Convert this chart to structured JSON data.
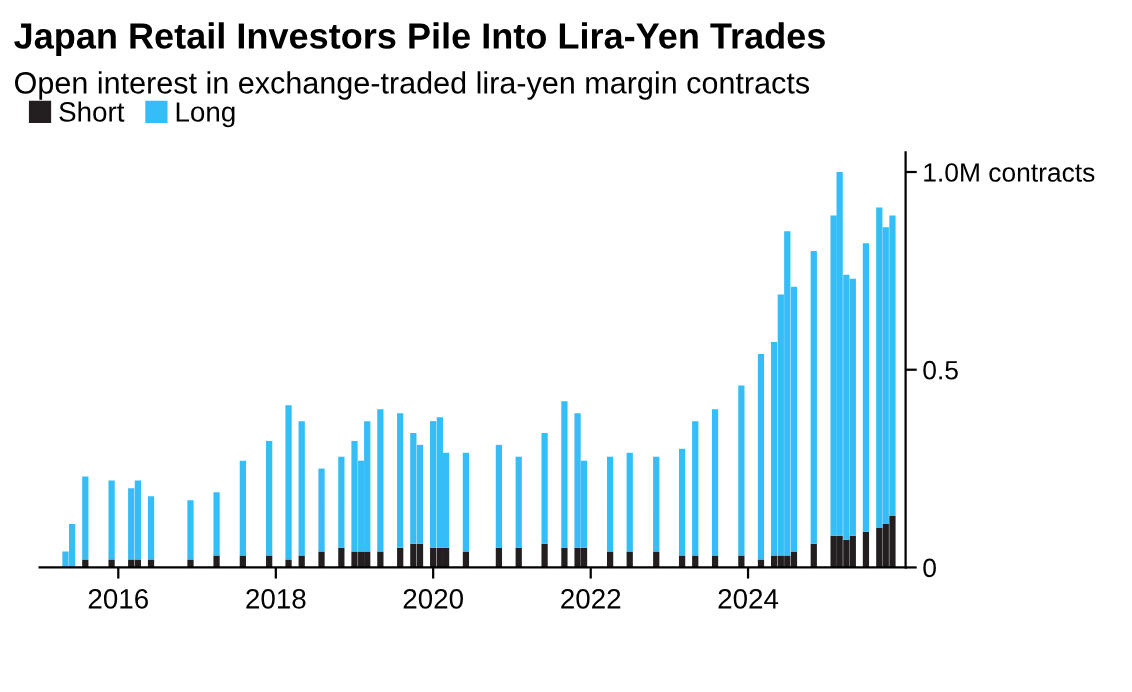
{
  "chart_data": {
    "type": "bar",
    "stacked": true,
    "title": "Japan Retail Investors Pile Into Lira-Yen Trades",
    "subtitle": "Open interest in exchange-traded lira-yen margin contracts",
    "x": [
      "2015-05",
      "2015-06",
      "2015-08",
      "2015-12",
      "2016-03",
      "2016-04",
      "2016-06",
      "2016-12",
      "2017-04",
      "2017-08",
      "2017-12",
      "2018-03",
      "2018-05",
      "2018-08",
      "2018-11",
      "2019-01",
      "2019-02",
      "2019-03",
      "2019-05",
      "2019-08",
      "2019-10",
      "2019-11",
      "2020-01",
      "2020-02",
      "2020-03",
      "2020-06",
      "2020-11",
      "2021-02",
      "2021-06",
      "2021-09",
      "2021-11",
      "2021-12",
      "2022-04",
      "2022-07",
      "2022-11",
      "2023-03",
      "2023-05",
      "2023-08",
      "2023-12",
      "2024-03",
      "2024-05",
      "2024-06",
      "2024-07",
      "2024-08",
      "2024-11",
      "2025-02",
      "2025-03",
      "2025-04",
      "2025-05",
      "2025-07",
      "2025-09",
      "2025-10",
      "2025-11"
    ],
    "series": [
      {
        "name": "Short",
        "color": "#231f20",
        "values": [
          0,
          0,
          0.02,
          0.02,
          0.02,
          0.02,
          0.02,
          0.02,
          0.03,
          0.03,
          0.03,
          0.02,
          0.03,
          0.04,
          0.05,
          0.04,
          0.04,
          0.04,
          0.04,
          0.05,
          0.06,
          0.06,
          0.05,
          0.05,
          0.05,
          0.04,
          0.05,
          0.05,
          0.06,
          0.05,
          0.05,
          0.05,
          0.04,
          0.04,
          0.04,
          0.03,
          0.03,
          0.03,
          0.03,
          0.02,
          0.03,
          0.03,
          0.03,
          0.04,
          0.06,
          0.08,
          0.08,
          0.07,
          0.08,
          0.09,
          0.1,
          0.11,
          0.13
        ]
      },
      {
        "name": "Long",
        "color": "#34bdf6",
        "values": [
          0.04,
          0.11,
          0.21,
          0.2,
          0.18,
          0.2,
          0.16,
          0.15,
          0.16,
          0.24,
          0.29,
          0.39,
          0.34,
          0.21,
          0.23,
          0.28,
          0.23,
          0.33,
          0.36,
          0.34,
          0.28,
          0.25,
          0.32,
          0.33,
          0.24,
          0.25,
          0.26,
          0.23,
          0.28,
          0.37,
          0.34,
          0.22,
          0.24,
          0.25,
          0.24,
          0.27,
          0.34,
          0.37,
          0.43,
          0.52,
          0.54,
          0.66,
          0.82,
          0.67,
          0.74,
          0.81,
          0.92,
          0.67,
          0.65,
          0.73,
          0.81,
          0.75,
          0.76
        ]
      }
    ],
    "xlim": [
      "2015-01",
      "2026-01"
    ],
    "xticks": [
      "2016",
      "2018",
      "2020",
      "2022",
      "2024"
    ],
    "ylim": [
      0,
      1.05
    ],
    "yticks": [
      0,
      0.5,
      {
        "value": 1.0,
        "label": "1.0M contracts"
      }
    ],
    "legend": "top left",
    "grid": false
  }
}
